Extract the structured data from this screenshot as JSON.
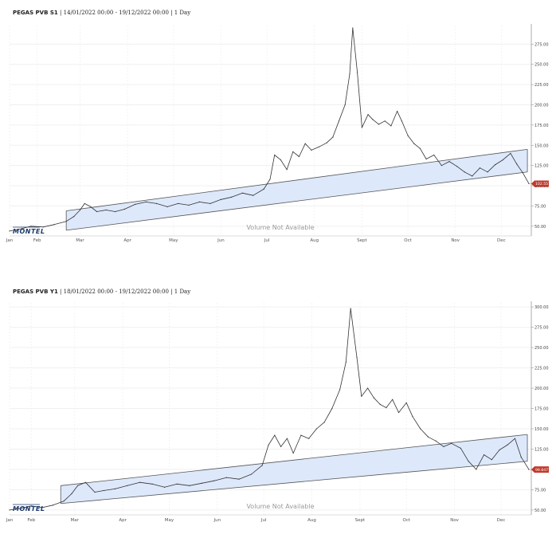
{
  "logo_text": "MONTEL",
  "chart_data": [
    {
      "type": "line",
      "product": "PEGAS PVB S1",
      "range_label": "14/01/2022 00:00 - 19/12/2022 00:00",
      "interval": "1 Day",
      "watermark": "Volume Not Available",
      "x_start": "2022-01-14",
      "x_end": "2022-12-19",
      "month_labels": [
        "Jan",
        "Feb",
        "Mar",
        "Apr",
        "May",
        "Jun",
        "Jul",
        "Aug",
        "Sept",
        "Oct",
        "Nov",
        "Dec"
      ],
      "month_dates": [
        "2022-01-14",
        "2022-02-01",
        "2022-03-01",
        "2022-04-01",
        "2022-05-01",
        "2022-06-01",
        "2022-07-01",
        "2022-08-01",
        "2022-09-01",
        "2022-10-01",
        "2022-11-01",
        "2022-12-01"
      ],
      "y_ticks": [
        50,
        75,
        100,
        125,
        150,
        175,
        200,
        225,
        250,
        275
      ],
      "y_tick_labels": [
        "50.00",
        "75.00",
        "100.00",
        "125.00",
        "150.00",
        "175.00",
        "200.00",
        "225.00",
        "250.00",
        "275.00"
      ],
      "ylim": [
        38,
        298
      ],
      "last_value": 102.557,
      "last_value_label": "102.557",
      "colors": {
        "line": "#333333",
        "channel_fill": "#dde8fb",
        "channel_edge": "#555555",
        "badge": "#c0392b"
      },
      "channel": {
        "upper": [
          [
            "2022-02-20",
            69
          ],
          [
            "2022-12-18",
            145
          ]
        ],
        "lower": [
          [
            "2022-02-20",
            45
          ],
          [
            "2022-12-18",
            117
          ]
        ]
      },
      "series": [
        {
          "x": [
            "2022-01-14",
            "2022-01-22",
            "2022-01-28",
            "2022-02-05",
            "2022-02-12",
            "2022-02-20",
            "2022-02-25",
            "2022-03-01",
            "2022-03-04",
            "2022-03-08",
            "2022-03-12",
            "2022-03-18",
            "2022-03-24",
            "2022-03-30",
            "2022-04-06",
            "2022-04-13",
            "2022-04-20",
            "2022-04-27",
            "2022-05-04",
            "2022-05-11",
            "2022-05-18",
            "2022-05-25",
            "2022-06-01",
            "2022-06-08",
            "2022-06-15",
            "2022-06-22",
            "2022-06-29",
            "2022-07-03",
            "2022-07-06",
            "2022-07-10",
            "2022-07-14",
            "2022-07-18",
            "2022-07-22",
            "2022-07-26",
            "2022-07-30",
            "2022-08-04",
            "2022-08-09",
            "2022-08-13",
            "2022-08-17",
            "2022-08-21",
            "2022-08-24",
            "2022-08-26",
            "2022-08-29",
            "2022-09-01",
            "2022-09-05",
            "2022-09-08",
            "2022-09-12",
            "2022-09-16",
            "2022-09-20",
            "2022-09-24",
            "2022-09-27",
            "2022-10-01",
            "2022-10-05",
            "2022-10-09",
            "2022-10-13",
            "2022-10-18",
            "2022-10-23",
            "2022-10-28",
            "2022-11-02",
            "2022-11-07",
            "2022-11-12",
            "2022-11-17",
            "2022-11-22",
            "2022-11-27",
            "2022-12-02",
            "2022-12-07",
            "2022-12-11",
            "2022-12-15",
            "2022-12-19"
          ],
          "y": [
            44,
            47,
            50,
            49,
            52,
            56,
            62,
            70,
            78,
            74,
            68,
            70,
            68,
            71,
            77,
            80,
            78,
            74,
            78,
            76,
            80,
            78,
            83,
            86,
            91,
            88,
            96,
            108,
            138,
            132,
            120,
            142,
            136,
            152,
            144,
            148,
            153,
            160,
            180,
            200,
            238,
            295,
            240,
            172,
            188,
            182,
            176,
            180,
            174,
            192,
            180,
            162,
            152,
            146,
            133,
            138,
            125,
            130,
            124,
            117,
            112,
            122,
            117,
            126,
            132,
            140,
            127,
            116,
            102.557
          ]
        }
      ]
    },
    {
      "type": "line",
      "product": "PEGAS PVB Y1",
      "range_label": "18/01/2022 00:00 - 19/12/2022 00:00",
      "interval": "1 Day",
      "watermark": "Volume Not Available",
      "x_start": "2022-01-18",
      "x_end": "2022-12-19",
      "month_labels": [
        "Jan",
        "Feb",
        "Mar",
        "Apr",
        "May",
        "Jun",
        "Jul",
        "Aug",
        "Sept",
        "Oct",
        "Nov",
        "Dec"
      ],
      "month_dates": [
        "2022-01-18",
        "2022-02-01",
        "2022-03-01",
        "2022-04-01",
        "2022-05-01",
        "2022-06-01",
        "2022-07-01",
        "2022-08-01",
        "2022-09-01",
        "2022-10-01",
        "2022-11-01",
        "2022-12-01"
      ],
      "y_ticks": [
        50,
        75,
        100,
        125,
        150,
        175,
        200,
        225,
        250,
        275,
        300
      ],
      "y_tick_labels": [
        "50.00",
        "75.00",
        "100.00",
        "125.00",
        "150.00",
        "175.00",
        "200.00",
        "225.00",
        "250.00",
        "275.00",
        "300.00"
      ],
      "ylim": [
        44,
        305
      ],
      "last_value": 99.847,
      "last_value_label": "99.847",
      "colors": {
        "line": "#333333",
        "channel_fill": "#dde8fb",
        "channel_edge": "#555555",
        "badge": "#c0392b"
      },
      "channel": {
        "upper": [
          [
            "2022-02-20",
            80
          ],
          [
            "2022-12-18",
            143
          ]
        ],
        "lower": [
          [
            "2022-02-20",
            58
          ],
          [
            "2022-12-18",
            110
          ]
        ]
      },
      "series": [
        {
          "x": [
            "2022-01-18",
            "2022-01-25",
            "2022-02-01",
            "2022-02-08",
            "2022-02-15",
            "2022-02-22",
            "2022-02-27",
            "2022-03-03",
            "2022-03-08",
            "2022-03-14",
            "2022-03-20",
            "2022-03-27",
            "2022-04-04",
            "2022-04-12",
            "2022-04-20",
            "2022-04-28",
            "2022-05-06",
            "2022-05-14",
            "2022-05-22",
            "2022-05-30",
            "2022-06-07",
            "2022-06-15",
            "2022-06-23",
            "2022-06-30",
            "2022-07-04",
            "2022-07-08",
            "2022-07-12",
            "2022-07-16",
            "2022-07-20",
            "2022-07-25",
            "2022-07-30",
            "2022-08-04",
            "2022-08-09",
            "2022-08-14",
            "2022-08-19",
            "2022-08-23",
            "2022-08-26",
            "2022-08-30",
            "2022-09-02",
            "2022-09-06",
            "2022-09-10",
            "2022-09-14",
            "2022-09-18",
            "2022-09-22",
            "2022-09-26",
            "2022-10-01",
            "2022-10-05",
            "2022-10-10",
            "2022-10-15",
            "2022-10-20",
            "2022-10-25",
            "2022-10-30",
            "2022-11-05",
            "2022-11-10",
            "2022-11-15",
            "2022-11-20",
            "2022-11-25",
            "2022-11-30",
            "2022-12-05",
            "2022-12-10",
            "2022-12-14",
            "2022-12-19"
          ],
          "y": [
            50,
            52,
            55,
            53,
            56,
            61,
            70,
            80,
            84,
            72,
            74,
            76,
            80,
            84,
            82,
            78,
            82,
            80,
            83,
            86,
            90,
            88,
            94,
            105,
            130,
            142,
            128,
            138,
            120,
            142,
            138,
            150,
            158,
            175,
            198,
            232,
            298,
            238,
            190,
            200,
            188,
            180,
            176,
            186,
            170,
            182,
            165,
            150,
            140,
            135,
            128,
            132,
            126,
            110,
            100,
            118,
            112,
            124,
            130,
            138,
            115,
            99.847
          ]
        }
      ]
    }
  ]
}
